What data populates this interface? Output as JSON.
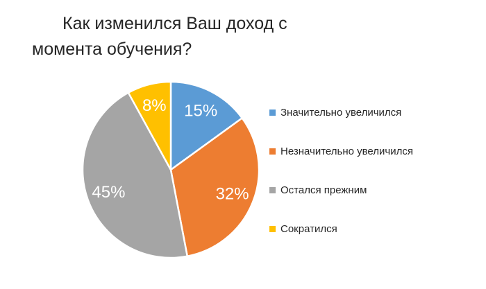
{
  "title": {
    "line1": "Как изменился Ваш доход с",
    "line2": "момента обучения?"
  },
  "colors": {
    "background": "#FFFFFF",
    "title_text": "#262626",
    "legend_text": "#262626",
    "slice_border": "#FFFFFF"
  },
  "chart_data": {
    "type": "pie",
    "title": "Как изменился Ваш доход с момента обучения?",
    "start_angle_deg": 0,
    "direction": "clockwise",
    "legend_position": "right",
    "label_color": "#FFFFFF",
    "label_font_size": 24,
    "label_radius_ratio": 0.75,
    "radius": 127,
    "slices": [
      {
        "label": "Значительно увеличился",
        "value": 15,
        "percent_label": "15%",
        "color": "#5B9BD5"
      },
      {
        "label": "Незначительно увеличился",
        "value": 32,
        "percent_label": "32%",
        "color": "#ED7D31"
      },
      {
        "label": "Остался прежним",
        "value": 45,
        "percent_label": "45%",
        "color": "#A5A5A5"
      },
      {
        "label": "Сократился",
        "value": 8,
        "percent_label": "8%",
        "color": "#FFC000"
      }
    ]
  }
}
